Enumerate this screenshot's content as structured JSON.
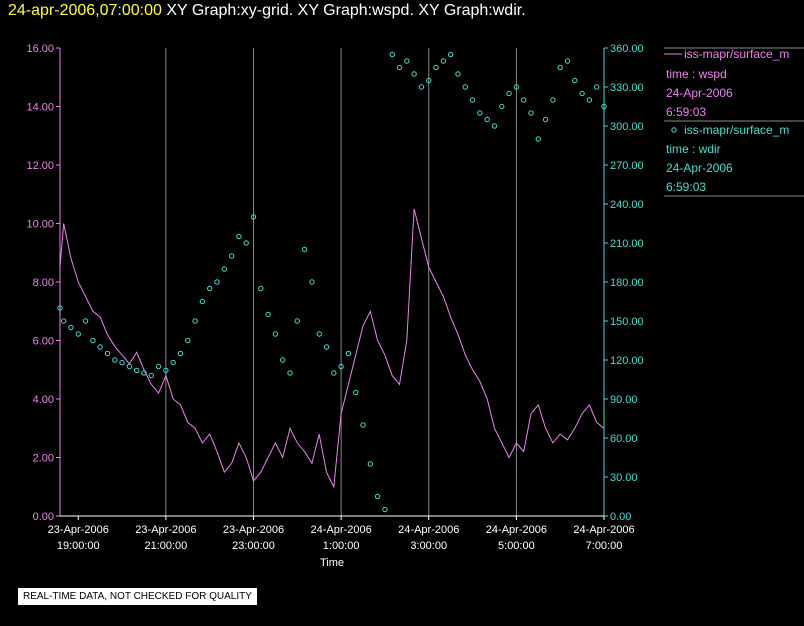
{
  "header": {
    "timestamp": "24-apr-2006,07:00:00",
    "titles": "XY Graph:xy-grid.  XY Graph:wspd.  XY Graph:wdir."
  },
  "footer": {
    "disclaimer": "REAL-TIME DATA, NOT CHECKED FOR QUALITY"
  },
  "colors": {
    "wspd": "#ee82ee",
    "wdir": "#40e0d0",
    "axis": "#ffffff",
    "grid": "#888888"
  },
  "chart_data": {
    "type": "line",
    "xlabel": "Time",
    "x_ticks": [
      {
        "l1": "23-Apr-2006",
        "l2": "19:00:00"
      },
      {
        "l1": "23-Apr-2006",
        "l2": "21:00:00"
      },
      {
        "l1": "23-Apr-2006",
        "l2": "23:00:00"
      },
      {
        "l1": "24-Apr-2006",
        "l2": "1:00:00"
      },
      {
        "l1": "24-Apr-2006",
        "l2": "3:00:00"
      },
      {
        "l1": "24-Apr-2006",
        "l2": "5:00:00"
      },
      {
        "l1": "24-Apr-2006",
        "l2": "7:00:00"
      }
    ],
    "xlim": [
      "23-Apr-2006 18:35",
      "24-Apr-2006 7:00"
    ],
    "y_left_ticks": [
      "0.00",
      "2.00",
      "4.00",
      "6.00",
      "8.00",
      "10.00",
      "12.00",
      "14.00",
      "16.00"
    ],
    "ylim_left": [
      0,
      16
    ],
    "y_right_ticks": [
      "0.00",
      "30.00",
      "60.00",
      "90.00",
      "120.00",
      "150.00",
      "180.00",
      "210.00",
      "240.00",
      "270.00",
      "300.00",
      "330.00",
      "360.00"
    ],
    "ylim_right": [
      0,
      360
    ],
    "grid": "vertical",
    "legend_position": "right",
    "series": [
      {
        "name": "iss-mapr/surface_m",
        "time_label": "time : wspd",
        "date": "24-Apr-2006",
        "clock": "6:59:03",
        "style": "line",
        "axis": "left",
        "x": [
          "18:35",
          "18:40",
          "18:50",
          "19:00",
          "19:10",
          "19:20",
          "19:30",
          "19:40",
          "19:50",
          "20:00",
          "20:10",
          "20:20",
          "20:30",
          "20:40",
          "20:50",
          "21:00",
          "21:10",
          "21:20",
          "21:30",
          "21:40",
          "21:50",
          "22:00",
          "22:10",
          "22:20",
          "22:30",
          "22:40",
          "22:50",
          "23:00",
          "23:10",
          "23:20",
          "23:30",
          "23:40",
          "23:50",
          "0:00",
          "0:10",
          "0:20",
          "0:30",
          "0:40",
          "0:50",
          "1:00",
          "1:10",
          "1:20",
          "1:30",
          "1:40",
          "1:50",
          "2:00",
          "2:10",
          "2:20",
          "2:30",
          "2:40",
          "2:50",
          "3:00",
          "3:10",
          "3:20",
          "3:30",
          "3:40",
          "3:50",
          "4:00",
          "4:10",
          "4:20",
          "4:30",
          "4:40",
          "4:50",
          "5:00",
          "5:10",
          "5:20",
          "5:30",
          "5:40",
          "5:50",
          "6:00",
          "6:10",
          "6:20",
          "6:30",
          "6:40",
          "6:50",
          "7:00"
        ],
        "values": [
          8.5,
          10.0,
          8.8,
          8.0,
          7.5,
          7.0,
          6.8,
          6.2,
          5.8,
          5.5,
          5.2,
          5.6,
          5.0,
          4.5,
          4.2,
          4.8,
          4.0,
          3.8,
          3.2,
          3.0,
          2.5,
          2.8,
          2.2,
          1.5,
          1.8,
          2.5,
          2.0,
          1.2,
          1.5,
          2.0,
          2.5,
          2.0,
          3.0,
          2.5,
          2.2,
          1.8,
          2.8,
          1.5,
          1.0,
          3.5,
          4.5,
          5.5,
          6.5,
          7.0,
          6.0,
          5.5,
          4.8,
          4.5,
          6.0,
          10.5,
          9.5,
          8.5,
          8.0,
          7.5,
          6.8,
          6.2,
          5.5,
          5.0,
          4.6,
          4.0,
          3.0,
          2.5,
          2.0,
          2.5,
          2.2,
          3.5,
          3.8,
          3.0,
          2.5,
          2.8,
          2.6,
          3.0,
          3.5,
          3.8,
          3.2,
          3.0
        ]
      },
      {
        "name": "iss-mapr/surface_m",
        "time_label": "time : wdir",
        "date": "24-Apr-2006",
        "clock": "6:59:03",
        "style": "scatter",
        "axis": "right",
        "x": [
          "18:35",
          "18:40",
          "18:50",
          "19:00",
          "19:10",
          "19:20",
          "19:30",
          "19:40",
          "19:50",
          "20:00",
          "20:10",
          "20:20",
          "20:30",
          "20:40",
          "20:50",
          "21:00",
          "21:10",
          "21:20",
          "21:30",
          "21:40",
          "21:50",
          "22:00",
          "22:10",
          "22:20",
          "22:30",
          "22:40",
          "22:50",
          "23:00",
          "23:10",
          "23:20",
          "23:30",
          "23:40",
          "23:50",
          "0:00",
          "0:10",
          "0:20",
          "0:30",
          "0:40",
          "0:50",
          "1:00",
          "1:10",
          "1:20",
          "1:30",
          "1:40",
          "1:50",
          "2:00",
          "2:10",
          "2:20",
          "2:30",
          "2:40",
          "2:50",
          "3:00",
          "3:10",
          "3:20",
          "3:30",
          "3:40",
          "3:50",
          "4:00",
          "4:10",
          "4:20",
          "4:30",
          "4:40",
          "4:50",
          "5:00",
          "5:10",
          "5:20",
          "5:30",
          "5:40",
          "5:50",
          "6:00",
          "6:10",
          "6:20",
          "6:30",
          "6:40",
          "6:50",
          "7:00"
        ],
        "values": [
          160,
          150,
          145,
          140,
          150,
          135,
          130,
          125,
          120,
          118,
          115,
          112,
          110,
          108,
          115,
          112,
          118,
          125,
          135,
          150,
          165,
          175,
          180,
          190,
          200,
          215,
          210,
          230,
          175,
          155,
          140,
          120,
          110,
          150,
          205,
          180,
          140,
          130,
          110,
          115,
          125,
          95,
          70,
          40,
          15,
          5,
          355,
          345,
          350,
          340,
          330,
          335,
          345,
          350,
          355,
          340,
          330,
          320,
          310,
          305,
          300,
          315,
          325,
          330,
          320,
          310,
          290,
          305,
          320,
          345,
          350,
          335,
          325,
          320,
          330,
          315
        ]
      }
    ]
  }
}
